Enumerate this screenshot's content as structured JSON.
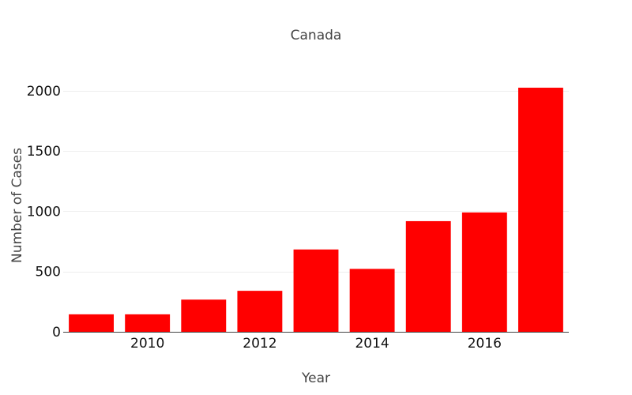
{
  "chart_data": {
    "type": "bar",
    "title": "Canada",
    "xlabel": "Year",
    "ylabel": "Number of Cases",
    "x": [
      2009,
      2010,
      2011,
      2012,
      2013,
      2014,
      2015,
      2016,
      2017
    ],
    "values": [
      145,
      145,
      267,
      340,
      683,
      522,
      918,
      990,
      2025
    ],
    "x_ticks": [
      2010,
      2012,
      2014,
      2016
    ],
    "y_ticks": [
      0,
      500,
      1000,
      1500,
      2000
    ],
    "ylim": [
      0,
      2130
    ],
    "xlim": [
      2008.5,
      2017.5
    ],
    "grid": true,
    "bar_color": "#ff0000"
  }
}
